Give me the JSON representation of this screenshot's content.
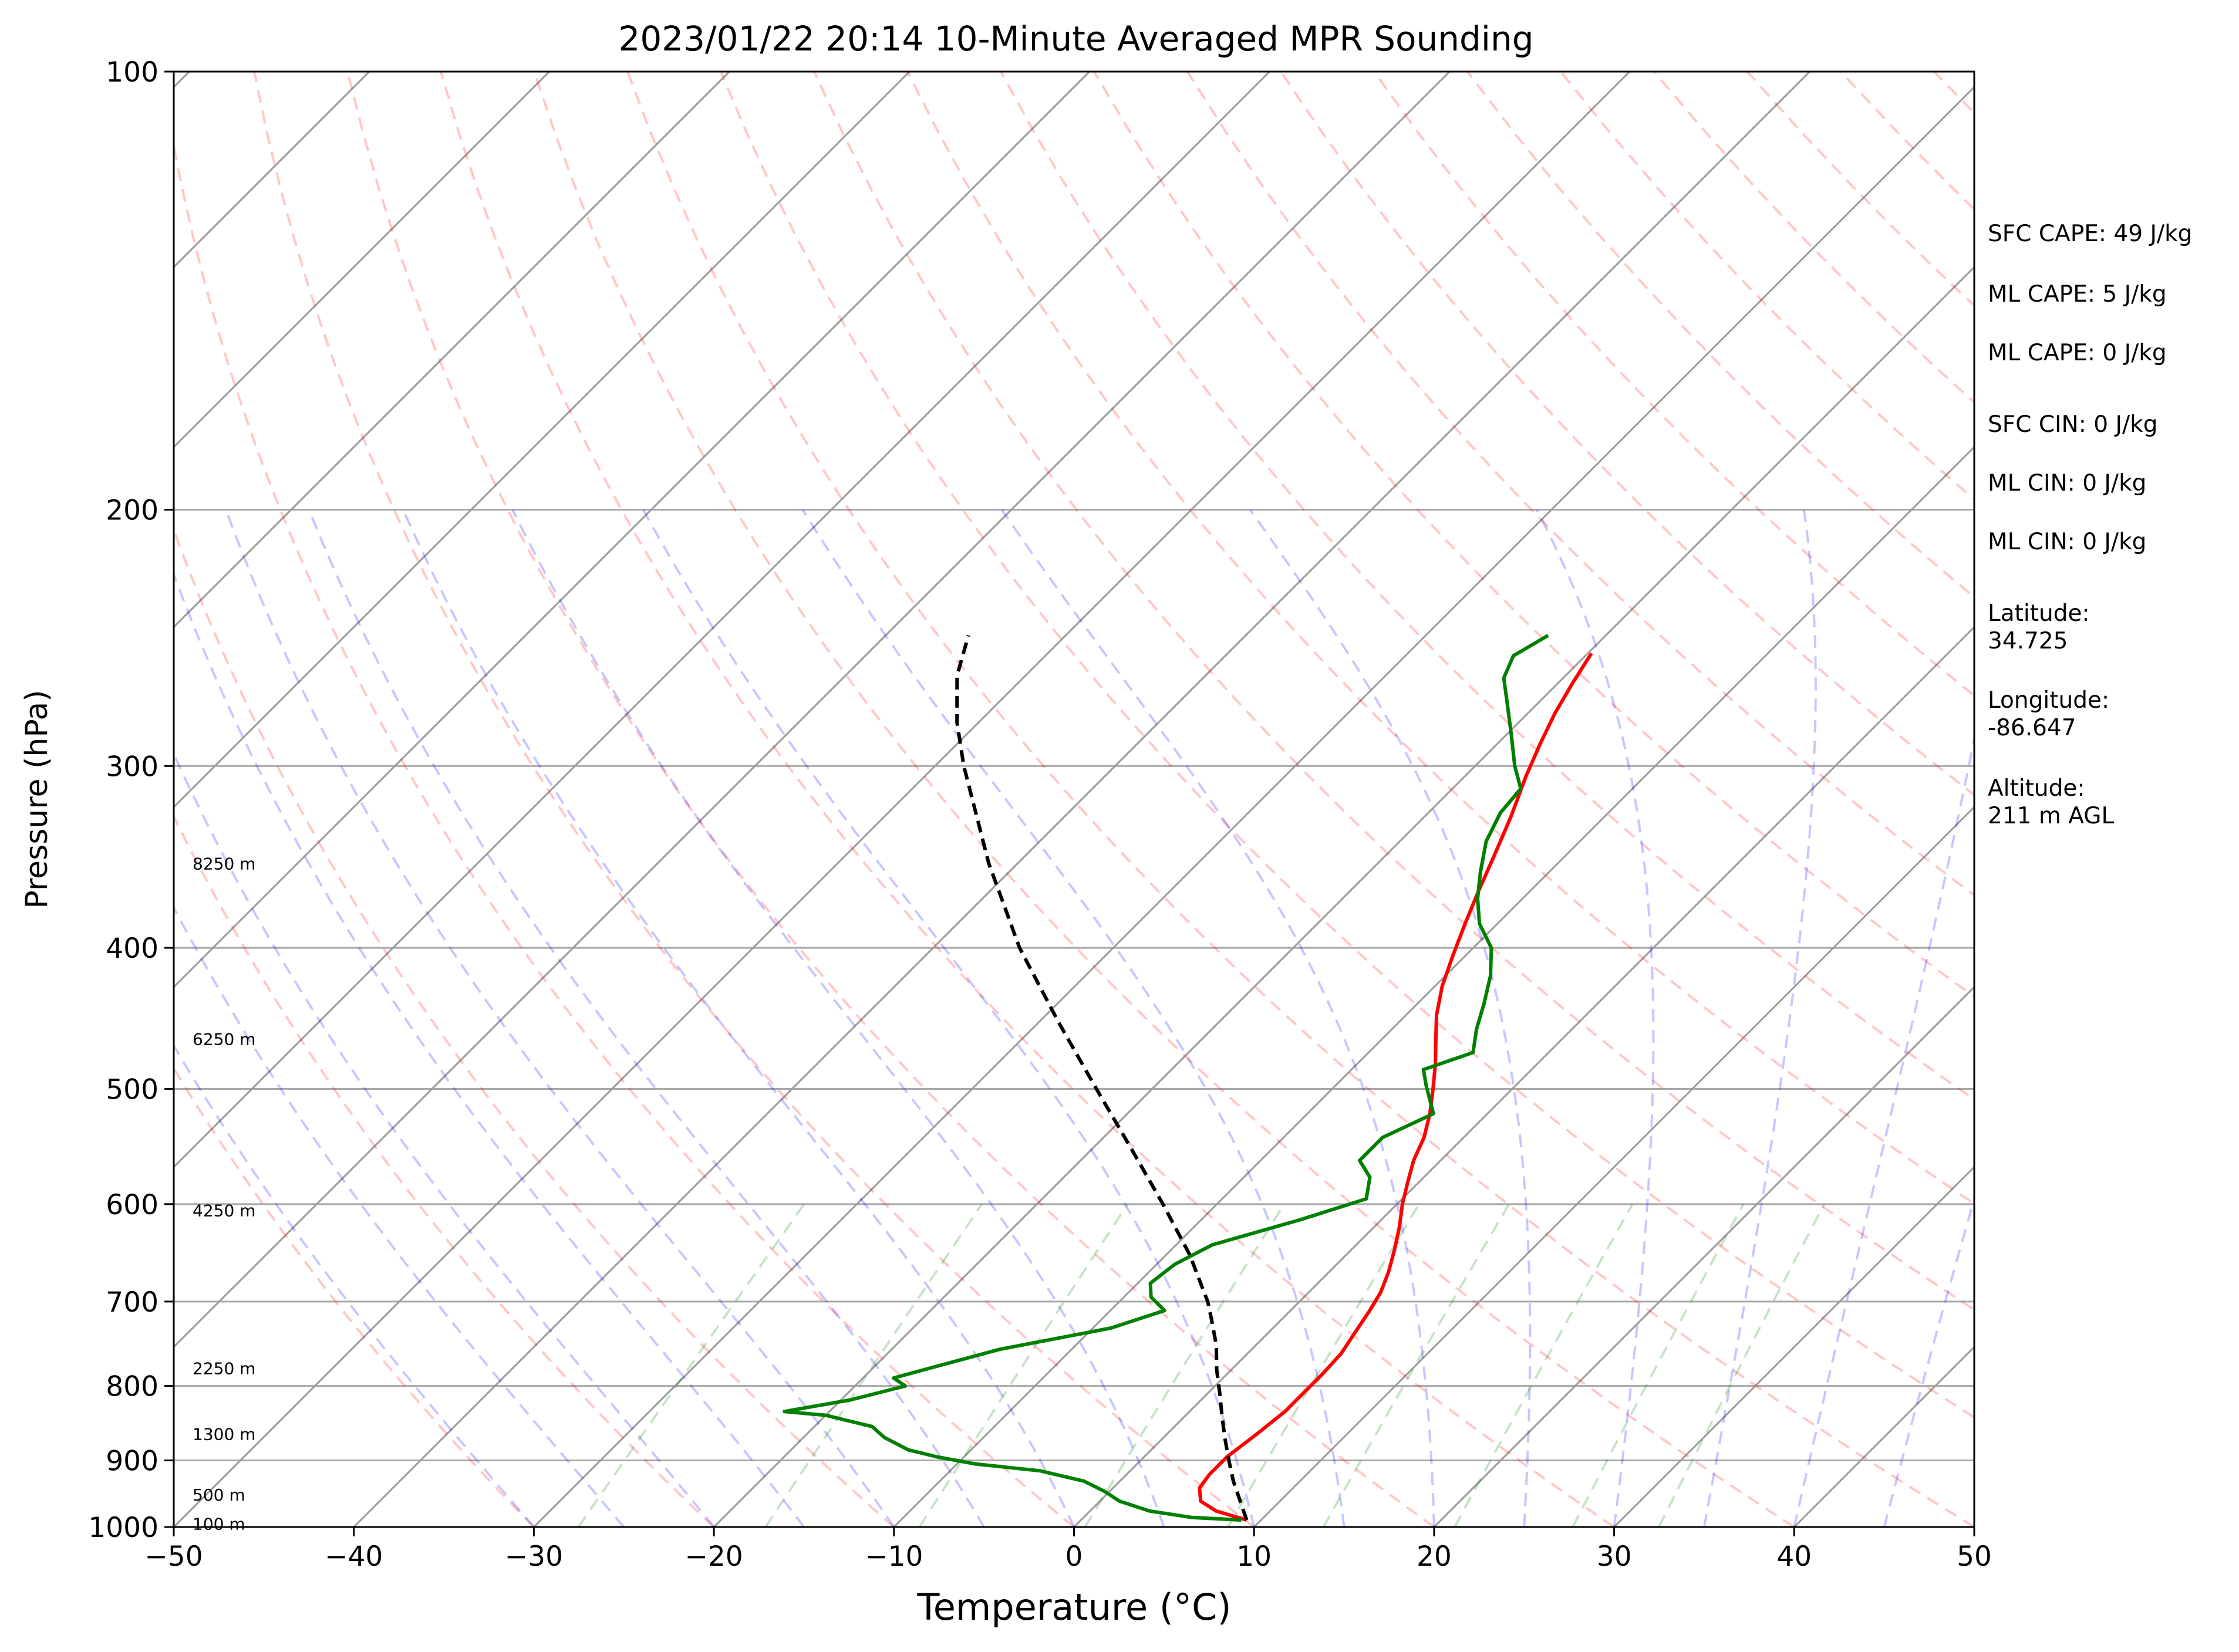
{
  "chart_data": {
    "type": "line",
    "title": "2023/01/22 20:14 10-Minute Averaged MPR Sounding",
    "xlabel": "Temperature (°C)",
    "ylabel": "Pressure (hPa)",
    "xlim": [
      -50,
      50
    ],
    "ylim": [
      1000,
      100
    ],
    "y_scale": "log",
    "x_ticks": [
      -50,
      -40,
      -30,
      -20,
      -10,
      0,
      10,
      20,
      30,
      40,
      50
    ],
    "x_tick_labels": [
      "−50",
      "−40",
      "−30",
      "−20",
      "−10",
      "0",
      "10",
      "20",
      "30",
      "40",
      "50"
    ],
    "y_ticks": [
      100,
      200,
      300,
      400,
      500,
      600,
      700,
      800,
      900,
      1000
    ],
    "y_tick_labels": [
      "100",
      "200",
      "300",
      "400",
      "500",
      "600",
      "700",
      "800",
      "900",
      "1000"
    ],
    "grid": true,
    "legend": "none",
    "height_labels": [
      {
        "p": 995,
        "text": "100 m"
      },
      {
        "p": 950,
        "text": "500 m"
      },
      {
        "p": 863,
        "text": "1300 m"
      },
      {
        "p": 778,
        "text": "2250 m"
      },
      {
        "p": 606,
        "text": "4250 m"
      },
      {
        "p": 462,
        "text": "6250 m"
      },
      {
        "p": 350,
        "text": "8250 m"
      }
    ],
    "series": [
      {
        "name": "",
        "role": "temperature",
        "color": "#ff0000",
        "points": [
          [
            989,
            9.2
          ],
          [
            975,
            7.0
          ],
          [
            960,
            5.6
          ],
          [
            940,
            4.8
          ],
          [
            920,
            4.6
          ],
          [
            895,
            4.6
          ],
          [
            862,
            5.0
          ],
          [
            833,
            5.3
          ],
          [
            810,
            5.3
          ],
          [
            785,
            5.3
          ],
          [
            760,
            5.2
          ],
          [
            735,
            4.8
          ],
          [
            710,
            4.4
          ],
          [
            690,
            4.0
          ],
          [
            668,
            3.3
          ],
          [
            645,
            2.4
          ],
          [
            622,
            1.4
          ],
          [
            600,
            0.3
          ],
          [
            580,
            -0.6
          ],
          [
            560,
            -1.5
          ],
          [
            540,
            -2.2
          ],
          [
            520,
            -3.2
          ],
          [
            500,
            -4.4
          ],
          [
            480,
            -5.7
          ],
          [
            465,
            -6.8
          ],
          [
            445,
            -8.3
          ],
          [
            425,
            -9.6
          ],
          [
            405,
            -10.7
          ],
          [
            385,
            -11.8
          ],
          [
            365,
            -12.9
          ],
          [
            345,
            -14.0
          ],
          [
            325,
            -15.2
          ],
          [
            305,
            -16.6
          ],
          [
            290,
            -17.6
          ],
          [
            276,
            -18.5
          ],
          [
            263,
            -19.2
          ],
          [
            251,
            -19.8
          ]
        ]
      },
      {
        "name": "",
        "role": "dewpoint",
        "color": "#008000",
        "points": [
          [
            989,
            8.9
          ],
          [
            985,
            6.0
          ],
          [
            975,
            3.3
          ],
          [
            960,
            1.1
          ],
          [
            945,
            -0.3
          ],
          [
            930,
            -2.0
          ],
          [
            915,
            -5.0
          ],
          [
            905,
            -9.0
          ],
          [
            895,
            -11.5
          ],
          [
            885,
            -13.5
          ],
          [
            868,
            -15.5
          ],
          [
            853,
            -16.8
          ],
          [
            838,
            -20.0
          ],
          [
            833,
            -22.5
          ],
          [
            818,
            -19.5
          ],
          [
            800,
            -17.2
          ],
          [
            790,
            -18.3
          ],
          [
            775,
            -16.5
          ],
          [
            755,
            -14.0
          ],
          [
            730,
            -9.0
          ],
          [
            710,
            -7.0
          ],
          [
            695,
            -8.5
          ],
          [
            680,
            -9.3
          ],
          [
            660,
            -9.0
          ],
          [
            640,
            -8.0
          ],
          [
            615,
            -4.5
          ],
          [
            595,
            -2.0
          ],
          [
            575,
            -3.0
          ],
          [
            560,
            -4.5
          ],
          [
            540,
            -4.5
          ],
          [
            520,
            -3.0
          ],
          [
            497,
            -5.0
          ],
          [
            485,
            -6.0
          ],
          [
            472,
            -4.2
          ],
          [
            455,
            -5.3
          ],
          [
            437,
            -6.3
          ],
          [
            418,
            -7.5
          ],
          [
            400,
            -9.0
          ],
          [
            385,
            -11.0
          ],
          [
            370,
            -12.5
          ],
          [
            355,
            -13.8
          ],
          [
            338,
            -15.2
          ],
          [
            323,
            -16.0
          ],
          [
            311,
            -16.2
          ],
          [
            300,
            -17.8
          ],
          [
            285,
            -19.8
          ],
          [
            271,
            -21.8
          ],
          [
            261,
            -23.3
          ],
          [
            252,
            -24.0
          ],
          [
            244,
            -23.2
          ]
        ]
      },
      {
        "name": "",
        "role": "parcel",
        "color": "#000000",
        "points": [
          [
            989,
            9.2
          ],
          [
            960,
            7.8
          ],
          [
            930,
            6.3
          ],
          [
            900,
            4.9
          ],
          [
            870,
            3.5
          ],
          [
            840,
            2.1
          ],
          [
            810,
            0.7
          ],
          [
            780,
            -0.8
          ],
          [
            750,
            -2.2
          ],
          [
            720,
            -3.9
          ],
          [
            700,
            -5.1
          ],
          [
            650,
            -8.7
          ],
          [
            600,
            -13.0
          ],
          [
            550,
            -17.8
          ],
          [
            500,
            -23.1
          ],
          [
            450,
            -28.9
          ],
          [
            400,
            -35.2
          ],
          [
            350,
            -41.6
          ],
          [
            300,
            -48.4
          ],
          [
            280,
            -51.2
          ],
          [
            260,
            -53.8
          ],
          [
            244,
            -55.4
          ]
        ]
      }
    ]
  },
  "sidebar": {
    "sfc_cape": "SFC CAPE: 49 J/kg",
    "ml_cape_1": "ML CAPE: 5 J/kg",
    "ml_cape_2": "ML CAPE: 0 J/kg",
    "sfc_cin": "SFC CIN: 0 J/kg",
    "ml_cin_1": "ML CIN: 0 J/kg",
    "ml_cin_2": "ML CIN: 0 J/kg",
    "latitude_label": "Latitude:",
    "latitude_value": "34.725",
    "longitude_label": "Longitude:",
    "longitude_value": "-86.647",
    "altitude_label": "Altitude:",
    "altitude_value": "211 m AGL"
  }
}
